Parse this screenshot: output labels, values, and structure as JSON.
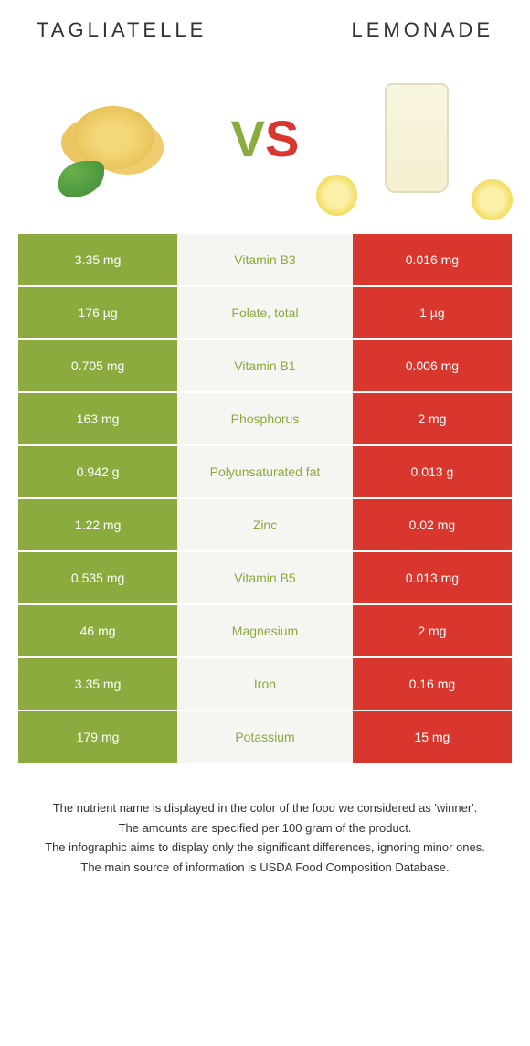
{
  "header": {
    "left_title": "Tagliatelle",
    "right_title": "Lemonade"
  },
  "vs": {
    "v": "V",
    "s": "S"
  },
  "colors": {
    "left": "#8bab3e",
    "right": "#d9362e",
    "mid_bg": "#f5f5f2"
  },
  "rows": [
    {
      "left": "3.35 mg",
      "name": "Vitamin B3",
      "right": "0.016 mg",
      "winner": "left"
    },
    {
      "left": "176 µg",
      "name": "Folate, total",
      "right": "1 µg",
      "winner": "left"
    },
    {
      "left": "0.705 mg",
      "name": "Vitamin B1",
      "right": "0.006 mg",
      "winner": "left"
    },
    {
      "left": "163 mg",
      "name": "Phosphorus",
      "right": "2 mg",
      "winner": "left"
    },
    {
      "left": "0.942 g",
      "name": "Polyunsaturated fat",
      "right": "0.013 g",
      "winner": "left"
    },
    {
      "left": "1.22 mg",
      "name": "Zinc",
      "right": "0.02 mg",
      "winner": "left"
    },
    {
      "left": "0.535 mg",
      "name": "Vitamin B5",
      "right": "0.013 mg",
      "winner": "left"
    },
    {
      "left": "46 mg",
      "name": "Magnesium",
      "right": "2 mg",
      "winner": "left"
    },
    {
      "left": "3.35 mg",
      "name": "Iron",
      "right": "0.16 mg",
      "winner": "left"
    },
    {
      "left": "179 mg",
      "name": "Potassium",
      "right": "15 mg",
      "winner": "left"
    }
  ],
  "footer": {
    "line1": "The nutrient name is displayed in the color of the food we considered as 'winner'.",
    "line2": "The amounts are specified per 100 gram of the product.",
    "line3": "The infographic aims to display only the significant differences, ignoring minor ones.",
    "line4": "The main source of information is USDA Food Composition Database."
  }
}
